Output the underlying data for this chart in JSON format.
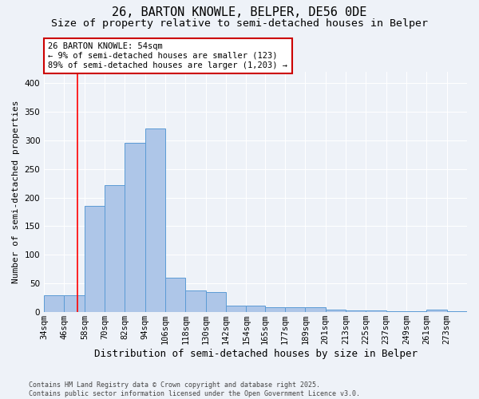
{
  "title1": "26, BARTON KNOWLE, BELPER, DE56 0DE",
  "title2": "Size of property relative to semi-detached houses in Belper",
  "xlabel": "Distribution of semi-detached houses by size in Belper",
  "ylabel": "Number of semi-detached properties",
  "bin_labels": [
    "34sqm",
    "46sqm",
    "58sqm",
    "70sqm",
    "82sqm",
    "94sqm",
    "106sqm",
    "118sqm",
    "130sqm",
    "142sqm",
    "154sqm",
    "165sqm",
    "177sqm",
    "189sqm",
    "201sqm",
    "213sqm",
    "225sqm",
    "237sqm",
    "249sqm",
    "261sqm",
    "273sqm"
  ],
  "bin_edges": [
    34,
    46,
    58,
    70,
    82,
    94,
    106,
    118,
    130,
    142,
    154,
    165,
    177,
    189,
    201,
    213,
    225,
    237,
    249,
    261,
    273,
    285
  ],
  "values": [
    30,
    30,
    186,
    222,
    295,
    320,
    60,
    38,
    35,
    12,
    12,
    8,
    8,
    8,
    4,
    3,
    3,
    2,
    2,
    4,
    2
  ],
  "bar_color": "#aec6e8",
  "bar_edge_color": "#5b9bd5",
  "red_line_x": 54,
  "annotation_text": "26 BARTON KNOWLE: 54sqm\n← 9% of semi-detached houses are smaller (123)\n89% of semi-detached houses are larger (1,203) →",
  "annotation_box_color": "#ffffff",
  "annotation_border_color": "#cc0000",
  "ylim": [
    0,
    420
  ],
  "xlim": [
    34,
    285
  ],
  "background_color": "#eef2f8",
  "grid_color": "#ffffff",
  "footer_text": "Contains HM Land Registry data © Crown copyright and database right 2025.\nContains public sector information licensed under the Open Government Licence v3.0.",
  "title1_fontsize": 11,
  "title2_fontsize": 9.5,
  "xlabel_fontsize": 9,
  "ylabel_fontsize": 8,
  "tick_fontsize": 7.5,
  "footer_fontsize": 6
}
